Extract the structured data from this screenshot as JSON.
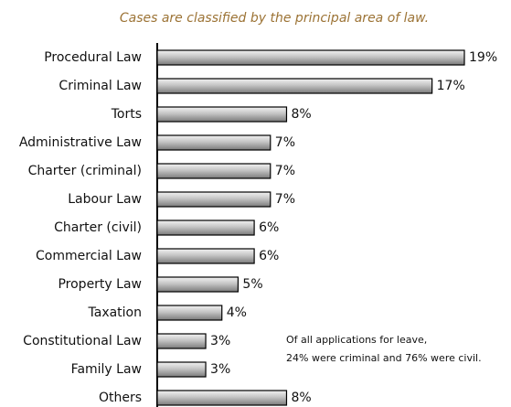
{
  "chart_data": {
    "type": "bar",
    "orientation": "horizontal",
    "title": "Cases are classified by the principal area of law.",
    "categories": [
      "Procedural Law",
      "Criminal Law",
      "Torts",
      "Administrative Law",
      "Charter (criminal)",
      "Labour Law",
      "Charter (civil)",
      "Commercial Law",
      "Property Law",
      "Taxation",
      "Constitutional Law",
      "Family Law",
      "Others"
    ],
    "values": [
      19,
      17,
      8,
      7,
      7,
      7,
      6,
      6,
      5,
      4,
      3,
      3,
      8
    ],
    "value_labels": [
      "19%",
      "17%",
      "8%",
      "7%",
      "7%",
      "7%",
      "6%",
      "6%",
      "5%",
      "4%",
      "3%",
      "3%",
      "8%"
    ],
    "color": "#a9a9a9",
    "annotation": [
      "Of all applications for leave,",
      "24% were criminal and 76% were civil."
    ]
  }
}
